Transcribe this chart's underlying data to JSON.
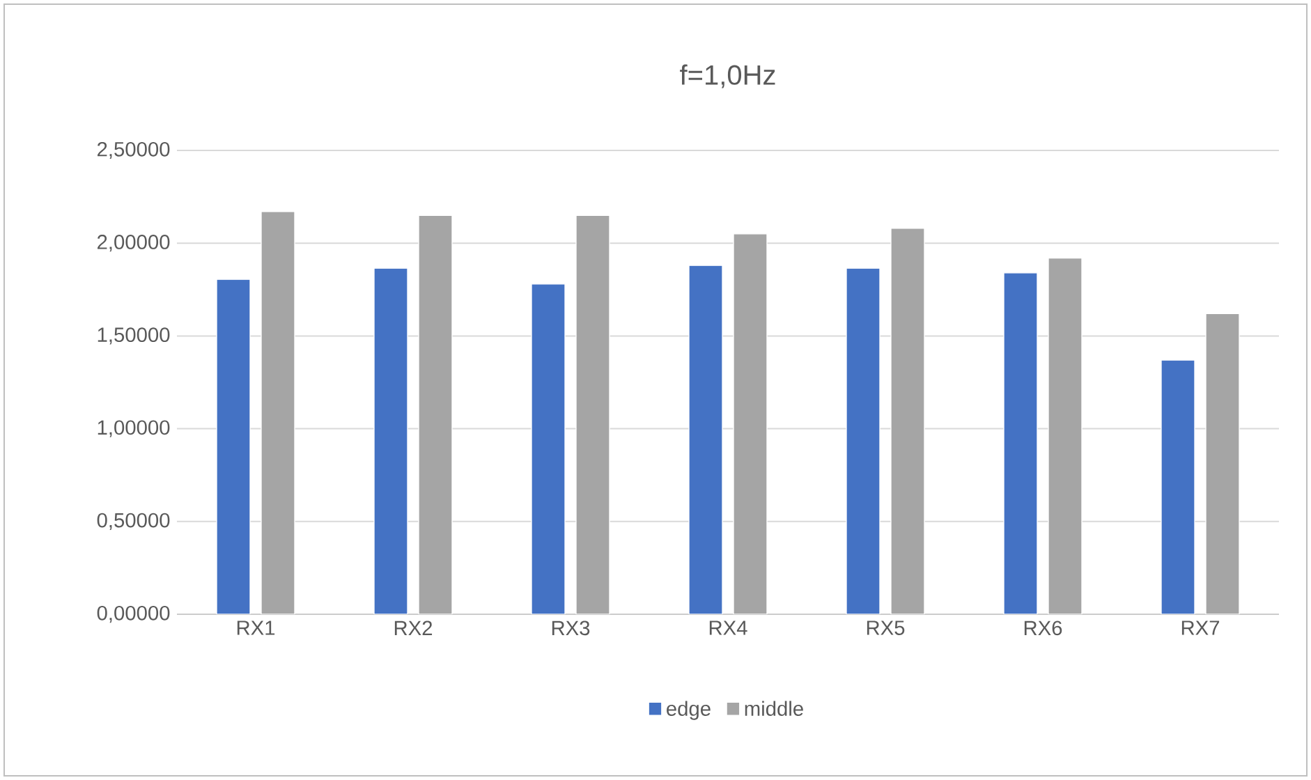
{
  "chart_data": {
    "type": "bar",
    "title": "f=1,0Hz",
    "categories": [
      "RX1",
      "RX2",
      "RX3",
      "RX4",
      "RX5",
      "RX6",
      "RX7"
    ],
    "series": [
      {
        "name": "edge",
        "color": "#4472c4",
        "values": [
          1.805,
          1.865,
          1.78,
          1.88,
          1.865,
          1.84,
          1.37
        ]
      },
      {
        "name": "middle",
        "color": "#a5a5a5",
        "values": [
          2.17,
          2.15,
          2.15,
          2.05,
          2.08,
          1.92,
          1.62
        ]
      }
    ],
    "ylim": [
      0,
      2.5
    ],
    "yticks": [
      {
        "value": 0,
        "label": "0,00000"
      },
      {
        "value": 0.5,
        "label": "0,50000"
      },
      {
        "value": 1,
        "label": "1,00000"
      },
      {
        "value": 1.5,
        "label": "1,50000"
      },
      {
        "value": 2,
        "label": "2,00000"
      },
      {
        "value": 2.5,
        "label": "2,50000"
      }
    ],
    "grid": "y",
    "legend": "bottom"
  }
}
